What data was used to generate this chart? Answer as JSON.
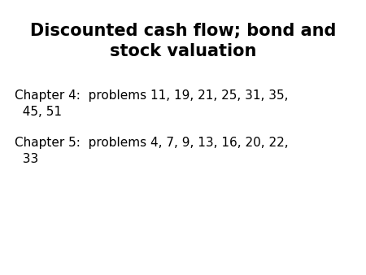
{
  "title_line1": "Discounted cash flow; bond and",
  "title_line2": "stock valuation",
  "chapter4_line1": "Chapter 4:  problems 11, 19, 21, 25, 31, 35,",
  "chapter4_line2": "  45, 51",
  "chapter5_line1": "Chapter 5:  problems 4, 7, 9, 13, 16, 20, 22,",
  "chapter5_line2": "  33",
  "background_color": "#ffffff",
  "text_color": "#000000",
  "title_fontsize": 15,
  "body_fontsize": 11
}
